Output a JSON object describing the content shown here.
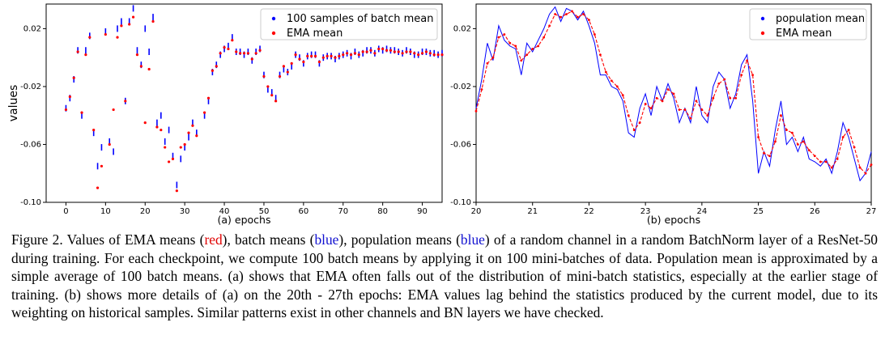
{
  "chart_data": [
    {
      "type": "scatter",
      "title": "",
      "xlabel": "(a) epochs",
      "ylabel": "values",
      "xlim": [
        -5,
        95
      ],
      "ylim": [
        -0.1,
        0.037
      ],
      "xticks": [
        0,
        10,
        20,
        30,
        40,
        50,
        60,
        70,
        80,
        90
      ],
      "xtick_labels": [
        "0",
        "10",
        "20",
        "30",
        "40",
        "50",
        "60",
        "70",
        "80",
        "90"
      ],
      "yticks": [
        -0.1,
        -0.06,
        -0.02,
        0.02
      ],
      "ytick_labels": [
        "-0.10",
        "-0.06",
        "-0.02",
        "0.02"
      ],
      "legend_position": "top-right",
      "series": [
        {
          "name": "100 samples of batch mean",
          "color": "#0000ff",
          "x": [
            0,
            1,
            2,
            3,
            4,
            5,
            6,
            7,
            8,
            9,
            10,
            11,
            12,
            13,
            14,
            15,
            16,
            17,
            18,
            19,
            20,
            21,
            22,
            23,
            24,
            25,
            26,
            27,
            28,
            29,
            30,
            31,
            32,
            33,
            35,
            36,
            37,
            38,
            39,
            40,
            41,
            42,
            43,
            44,
            45,
            46,
            47,
            48,
            49,
            50,
            51,
            52,
            53,
            54,
            55,
            56,
            57,
            58,
            59,
            60,
            61,
            62,
            63,
            64,
            65,
            66,
            67,
            68,
            69,
            70,
            71,
            72,
            73,
            74,
            75,
            76,
            77,
            78,
            79,
            80,
            81,
            82,
            83,
            84,
            85,
            86,
            87,
            88,
            89,
            90,
            91,
            92,
            93,
            94,
            95
          ],
          "y": [
            -0.035,
            -0.028,
            -0.015,
            0.005,
            -0.04,
            0.005,
            0.015,
            -0.052,
            -0.075,
            -0.062,
            0.018,
            -0.058,
            -0.065,
            0.02,
            0.025,
            -0.03,
            0.025,
            0.034,
            0.005,
            -0.005,
            0.02,
            0.004,
            0.028,
            -0.045,
            -0.04,
            -0.058,
            -0.05,
            -0.068,
            -0.088,
            -0.07,
            -0.062,
            -0.055,
            -0.045,
            -0.052,
            -0.04,
            -0.03,
            -0.01,
            -0.005,
            0.002,
            0.006,
            0.008,
            0.014,
            0.004,
            0.004,
            0.002,
            0.004,
            -0.002,
            0.004,
            0.006,
            -0.012,
            -0.022,
            -0.024,
            -0.028,
            -0.012,
            -0.008,
            -0.01,
            -0.006,
            0.002,
            0.0,
            -0.004,
            0.001,
            0.002,
            0.002,
            -0.004,
            0.0,
            0.001,
            0.001,
            -0.001,
            0.001,
            0.002,
            0.003,
            0.001,
            0.004,
            0.002,
            0.003,
            0.005,
            0.005,
            0.003,
            0.006,
            0.005,
            0.006,
            0.005,
            0.005,
            0.004,
            0.003,
            0.005,
            0.004,
            0.002,
            0.002,
            0.004,
            0.004,
            0.003,
            0.003,
            0.002,
            0.003
          ]
        },
        {
          "name": "EMA mean",
          "color": "#ff0000",
          "x": [
            0,
            1,
            2,
            3,
            4,
            5,
            6,
            7,
            8,
            9,
            10,
            11,
            12,
            13,
            14,
            15,
            16,
            17,
            18,
            19,
            20,
            21,
            22,
            23,
            24,
            25,
            26,
            27,
            28,
            29,
            30,
            31,
            32,
            33,
            35,
            36,
            37,
            38,
            39,
            40,
            41,
            42,
            43,
            44,
            45,
            46,
            47,
            48,
            49,
            50,
            51,
            52,
            53,
            54,
            55,
            56,
            57,
            58,
            59,
            60,
            61,
            62,
            63,
            64,
            65,
            66,
            67,
            68,
            69,
            70,
            71,
            72,
            73,
            74,
            75,
            76,
            77,
            78,
            79,
            80,
            81,
            82,
            83,
            84,
            85,
            86,
            87,
            88,
            89,
            90,
            91,
            92,
            93,
            94,
            95
          ],
          "y": [
            -0.036,
            -0.027,
            -0.014,
            0.004,
            -0.038,
            0.002,
            0.014,
            -0.05,
            -0.09,
            -0.075,
            0.016,
            -0.06,
            -0.036,
            0.014,
            0.022,
            -0.03,
            0.023,
            0.028,
            0.002,
            -0.006,
            -0.045,
            -0.008,
            0.025,
            -0.048,
            -0.05,
            -0.062,
            -0.072,
            -0.07,
            -0.092,
            -0.062,
            -0.06,
            -0.052,
            -0.047,
            -0.054,
            -0.038,
            -0.028,
            -0.009,
            -0.006,
            0.003,
            0.007,
            0.006,
            0.012,
            0.004,
            0.003,
            0.003,
            0.003,
            -0.001,
            0.003,
            0.005,
            -0.013,
            -0.02,
            -0.026,
            -0.03,
            -0.013,
            -0.006,
            -0.01,
            -0.004,
            0.002,
            -0.001,
            -0.003,
            0.001,
            0.001,
            0.001,
            -0.003,
            0.0,
            0.001,
            0.001,
            0.0,
            0.001,
            0.002,
            0.003,
            0.002,
            0.003,
            0.002,
            0.004,
            0.004,
            0.005,
            0.003,
            0.006,
            0.006,
            0.005,
            0.005,
            0.004,
            0.004,
            0.003,
            0.004,
            0.004,
            0.003,
            0.002,
            0.003,
            0.004,
            0.003,
            0.002,
            0.002,
            0.002
          ]
        }
      ]
    },
    {
      "type": "line",
      "title": "",
      "xlabel": "(b) epochs",
      "ylabel": "",
      "xlim": [
        20,
        27
      ],
      "ylim": [
        -0.1,
        0.037
      ],
      "xticks": [
        20,
        21,
        22,
        23,
        24,
        25,
        26,
        27
      ],
      "xtick_labels": [
        "20",
        "21",
        "22",
        "23",
        "24",
        "25",
        "26",
        "27"
      ],
      "yticks": [
        -0.1,
        -0.06,
        -0.02,
        0.02
      ],
      "ytick_labels": [
        "-0.10",
        "-0.06",
        "-0.02",
        "0.02"
      ],
      "legend_position": "top-right",
      "series": [
        {
          "name": "population mean",
          "color": "#0000ff",
          "x": [
            20.0,
            20.1,
            20.2,
            20.3,
            20.4,
            20.5,
            20.6,
            20.7,
            20.8,
            20.9,
            21.0,
            21.1,
            21.2,
            21.3,
            21.4,
            21.5,
            21.6,
            21.7,
            21.8,
            21.9,
            22.0,
            22.1,
            22.2,
            22.3,
            22.4,
            22.5,
            22.6,
            22.7,
            22.8,
            22.9,
            23.0,
            23.1,
            23.2,
            23.3,
            23.4,
            23.5,
            23.6,
            23.7,
            23.8,
            23.9,
            24.0,
            24.1,
            24.2,
            24.3,
            24.4,
            24.5,
            24.6,
            24.7,
            24.8,
            24.9,
            25.0,
            25.1,
            25.2,
            25.3,
            25.4,
            25.5,
            25.6,
            25.7,
            25.8,
            25.9,
            26.0,
            26.1,
            26.2,
            26.3,
            26.4,
            26.5,
            26.6,
            26.7,
            26.8,
            26.9,
            27.0
          ],
          "y": [
            -0.035,
            -0.015,
            0.01,
            -0.002,
            0.022,
            0.012,
            0.008,
            0.006,
            -0.012,
            0.01,
            0.004,
            0.012,
            0.02,
            0.03,
            0.035,
            0.025,
            0.034,
            0.032,
            0.026,
            0.032,
            0.022,
            0.01,
            -0.012,
            -0.012,
            -0.02,
            -0.022,
            -0.03,
            -0.052,
            -0.055,
            -0.035,
            -0.025,
            -0.04,
            -0.02,
            -0.03,
            -0.018,
            -0.028,
            -0.045,
            -0.035,
            -0.045,
            -0.02,
            -0.04,
            -0.045,
            -0.02,
            -0.01,
            -0.015,
            -0.035,
            -0.025,
            -0.005,
            0.002,
            -0.03,
            -0.08,
            -0.065,
            -0.075,
            -0.05,
            -0.03,
            -0.06,
            -0.055,
            -0.065,
            -0.055,
            -0.07,
            -0.072,
            -0.075,
            -0.07,
            -0.08,
            -0.065,
            -0.045,
            -0.055,
            -0.07,
            -0.085,
            -0.08,
            -0.065
          ]
        },
        {
          "name": "EMA mean",
          "color": "#ff0000",
          "x": [
            20.0,
            20.1,
            20.2,
            20.3,
            20.4,
            20.5,
            20.6,
            20.7,
            20.8,
            20.9,
            21.0,
            21.1,
            21.2,
            21.3,
            21.4,
            21.5,
            21.6,
            21.7,
            21.8,
            21.9,
            22.0,
            22.1,
            22.2,
            22.3,
            22.4,
            22.5,
            22.6,
            22.7,
            22.8,
            22.9,
            23.0,
            23.1,
            23.2,
            23.3,
            23.4,
            23.5,
            23.6,
            23.7,
            23.8,
            23.9,
            24.0,
            24.1,
            24.2,
            24.3,
            24.4,
            24.5,
            24.6,
            24.7,
            24.8,
            24.9,
            25.0,
            25.1,
            25.2,
            25.3,
            25.4,
            25.5,
            25.6,
            25.7,
            25.8,
            25.9,
            26.0,
            26.1,
            26.2,
            26.3,
            26.4,
            26.5,
            26.6,
            26.7,
            26.8,
            26.9,
            27.0
          ],
          "y": [
            -0.037,
            -0.022,
            -0.004,
            0.0,
            0.014,
            0.016,
            0.01,
            0.008,
            -0.002,
            0.002,
            0.006,
            0.008,
            0.014,
            0.022,
            0.03,
            0.028,
            0.03,
            0.032,
            0.028,
            0.03,
            0.026,
            0.016,
            0.002,
            -0.01,
            -0.016,
            -0.02,
            -0.026,
            -0.04,
            -0.05,
            -0.045,
            -0.032,
            -0.035,
            -0.028,
            -0.03,
            -0.022,
            -0.025,
            -0.036,
            -0.036,
            -0.042,
            -0.03,
            -0.036,
            -0.04,
            -0.028,
            -0.018,
            -0.015,
            -0.028,
            -0.028,
            -0.012,
            -0.002,
            -0.012,
            -0.055,
            -0.066,
            -0.068,
            -0.058,
            -0.04,
            -0.05,
            -0.052,
            -0.06,
            -0.058,
            -0.064,
            -0.068,
            -0.072,
            -0.072,
            -0.076,
            -0.07,
            -0.055,
            -0.05,
            -0.062,
            -0.076,
            -0.08,
            -0.074
          ]
        }
      ]
    }
  ],
  "caption": {
    "prefix": "Figure 2.   Values of EMA means (",
    "red_word": "red",
    "mid1": "), batch means (",
    "blue_word1": "blue",
    "mid2": "), population means (",
    "blue_word2": "blue",
    "rest": ") of a random channel in a random BatchNorm layer of a ResNet-50 during training. For each checkpoint, we compute 100 batch means by applying it on 100 mini-batches of data. Population mean is approximated by a simple average of 100 batch means.  (a) shows that EMA often falls out of the distribution of mini-batch statistics, especially at the earlier stage of training.  (b) shows more details of (a) on the 20th - 27th epochs: EMA values lag behind the statistics produced by the current model, due to its weighting on historical samples. Similar patterns exist in other channels and BN layers we have checked."
  }
}
